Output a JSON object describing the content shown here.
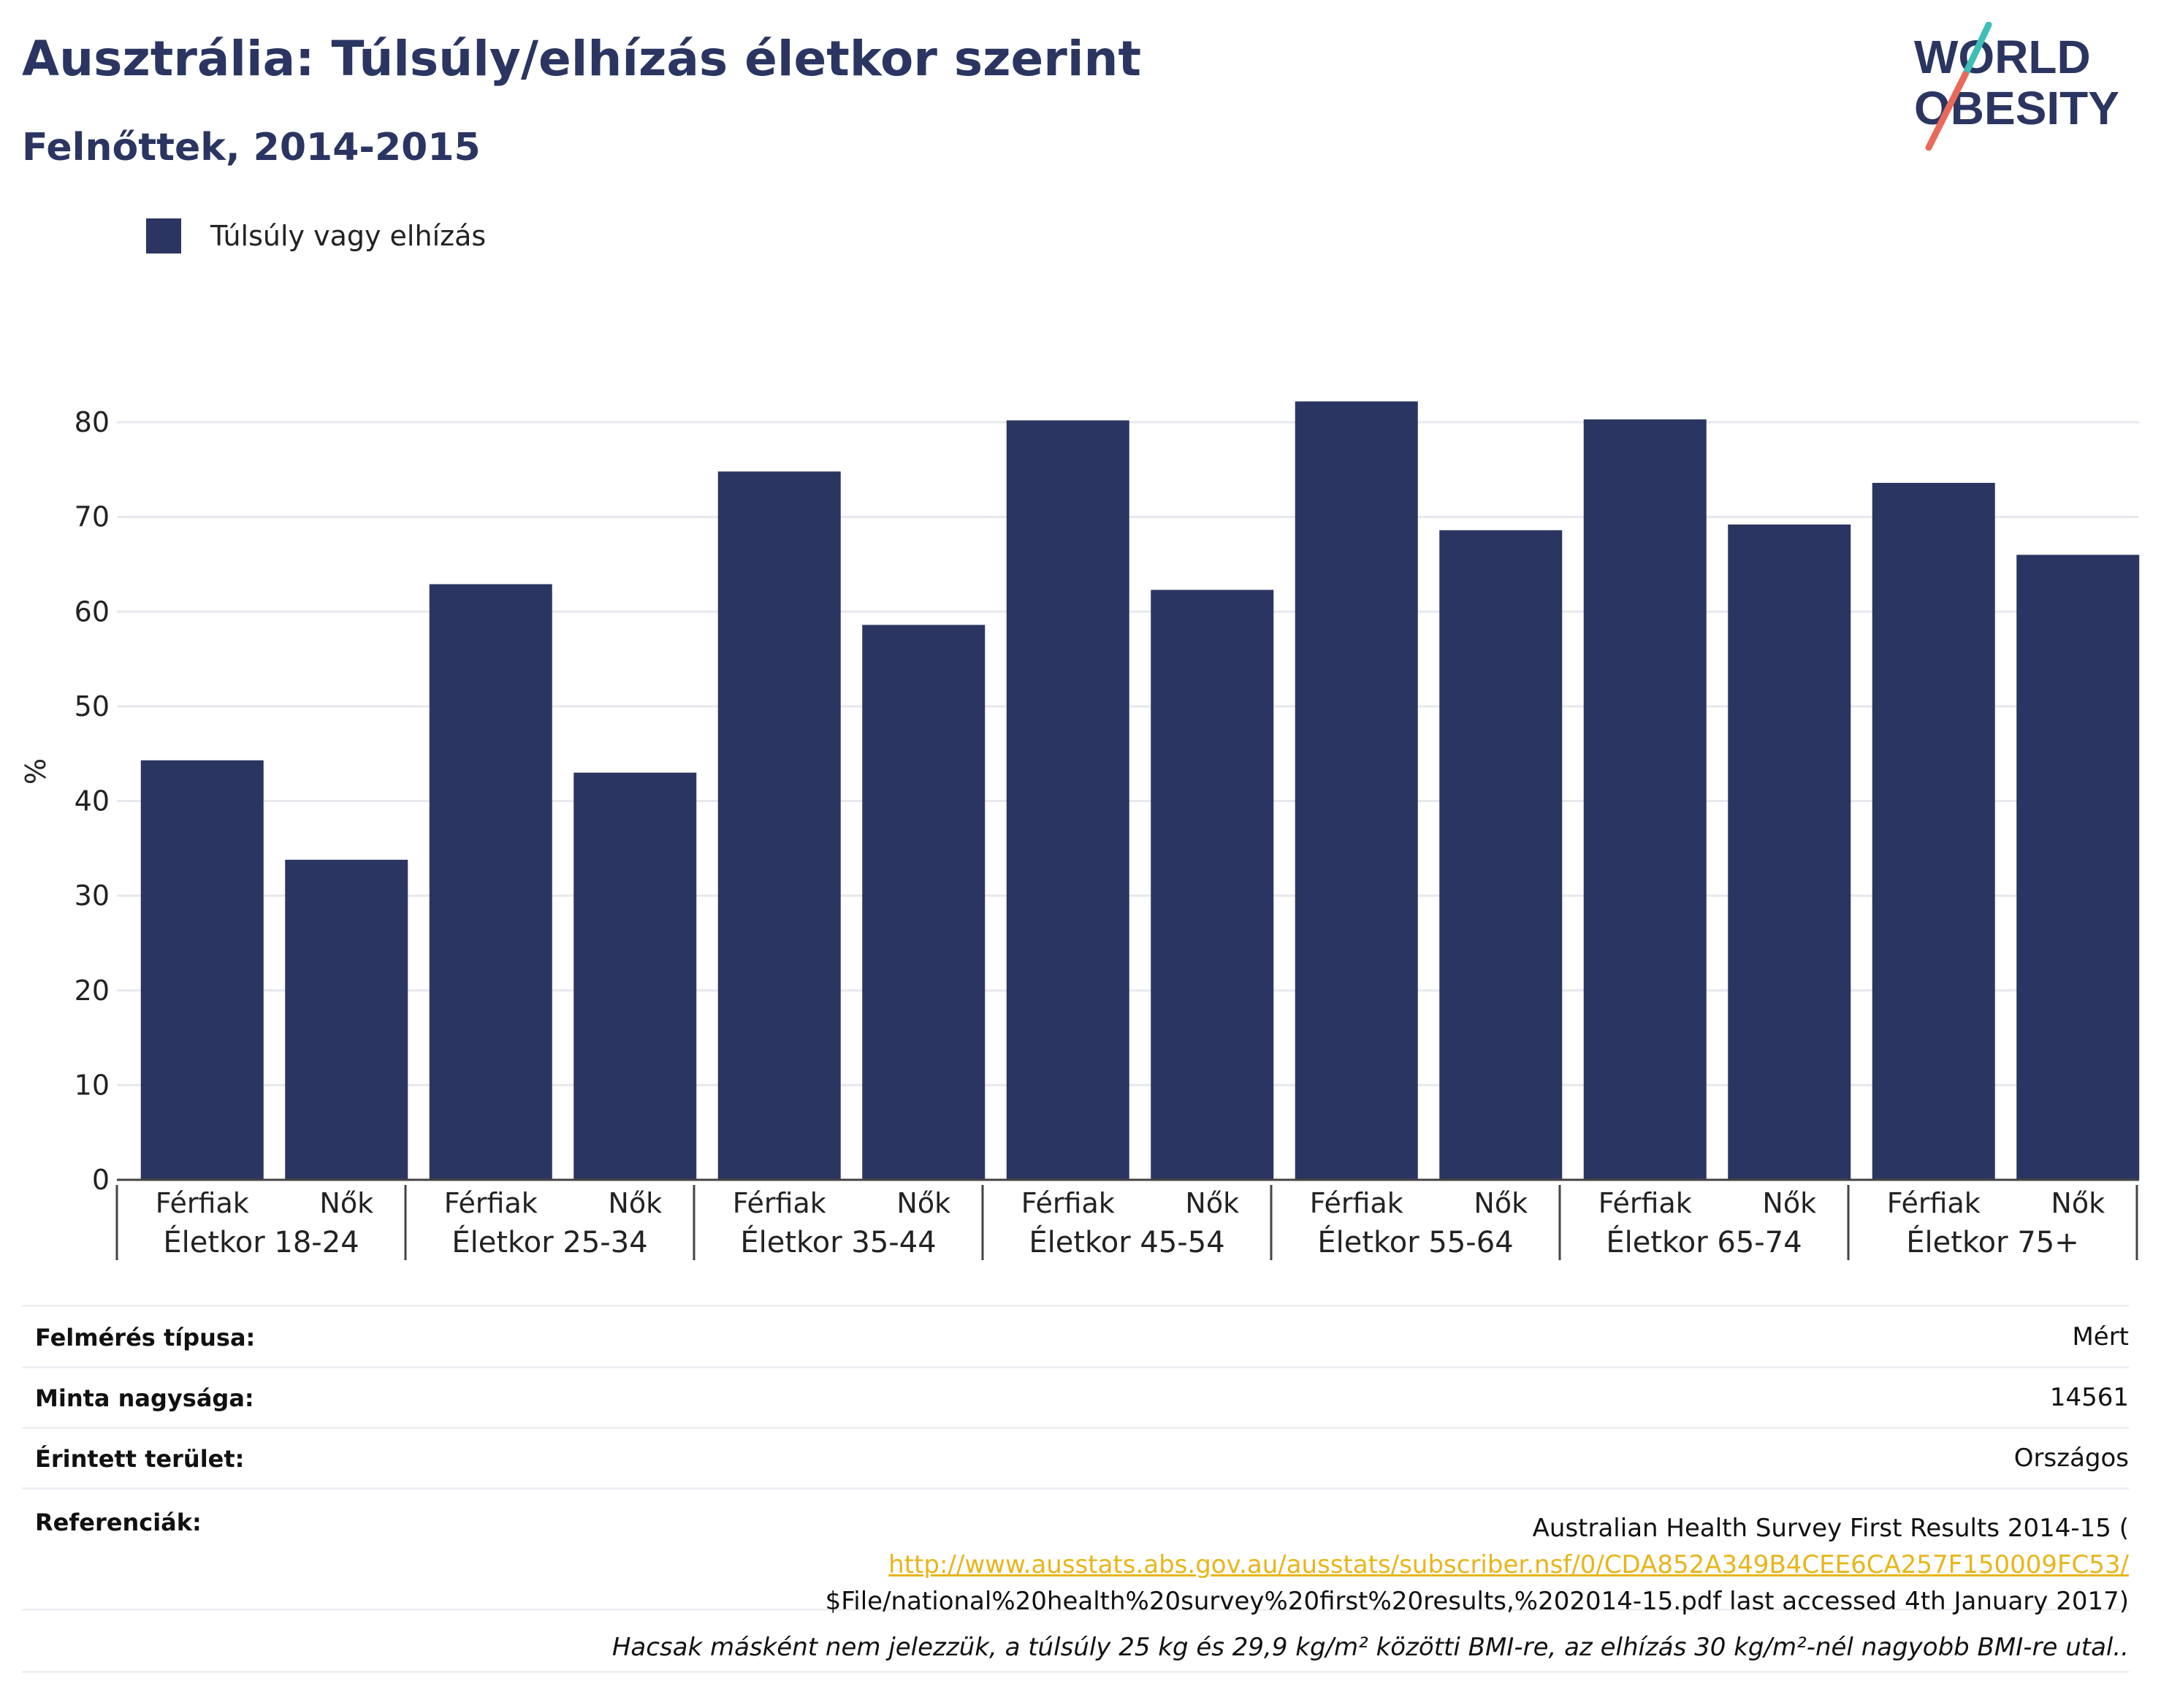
{
  "title": "Ausztrália: Túlsúly/elhízás életkor szerint",
  "subtitle": "Felnőttek, 2014-2015",
  "logo": {
    "line1": "WORLD",
    "line2": "OBESITY"
  },
  "colors": {
    "bar": "#2b3561",
    "text_dark": "#2b3561",
    "link": "#e8b51a",
    "logo_teal": "#3dbfb8",
    "logo_coral": "#e86a5a",
    "grid": "#e6e8ee"
  },
  "legend": {
    "label": "Túlsúly vagy elhízás"
  },
  "chart_data": {
    "type": "bar",
    "ylabel": "%",
    "ylim": [
      0,
      85
    ],
    "yticks": [
      0,
      10,
      20,
      30,
      40,
      50,
      60,
      70,
      80
    ],
    "grid": true,
    "legend_position": "top-left",
    "groups": [
      "Életkor 18-24",
      "Életkor 25-34",
      "Életkor 35-44",
      "Életkor 45-54",
      "Életkor 55-64",
      "Életkor 65-74",
      "Életkor 75+"
    ],
    "subcategories": [
      "Férfiak",
      "Nők"
    ],
    "series": [
      {
        "name": "Túlsúly vagy elhízás",
        "values": [
          44.3,
          33.8,
          62.9,
          43.0,
          74.8,
          58.6,
          80.2,
          62.3,
          82.2,
          68.6,
          80.3,
          69.2,
          73.6,
          66.0
        ]
      }
    ]
  },
  "info": {
    "survey_type_label": "Felmérés típusa:",
    "survey_type_value": "Mért",
    "sample_size_label": "Minta nagysága:",
    "sample_size_value": "14561",
    "area_label": "Érintett terület:",
    "area_value": "Országos",
    "references_label": "Referenciák:",
    "references_line1": "Australian Health Survey First Results 2014-15 (",
    "references_link": "http://www.ausstats.abs.gov.au/ausstats/subscriber.nsf/0/CDA852A349B4CEE6CA257F150009FC53/",
    "references_line3": "$File/national%20health%20survey%20first%20results,%202014-15.pdf last accessed 4th January 2017)",
    "note": "Hacsak másként nem jelezzük, a túlsúly 25 kg és 29,9 kg/m² közötti BMI-re, az elhízás 30 kg/m²-nél nagyobb BMI-re utal.."
  }
}
